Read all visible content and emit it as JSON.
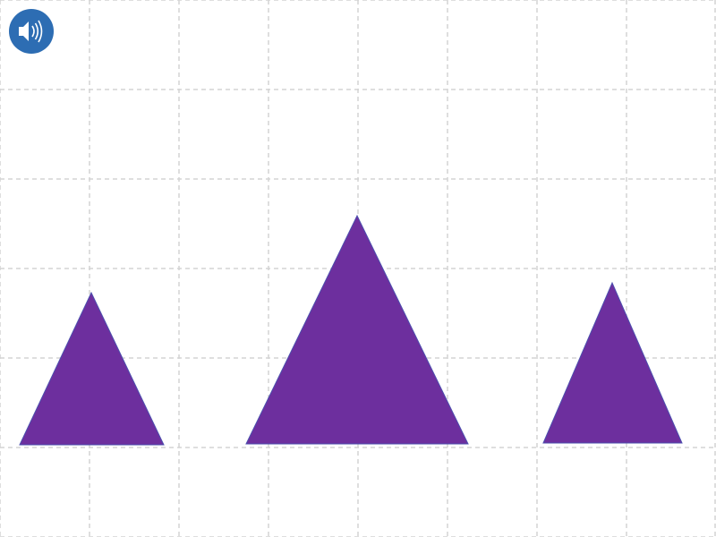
{
  "audio_button": {
    "icon": "speaker-icon",
    "color": "#2d6db3"
  },
  "grid": {
    "visible": true,
    "line_color": "#d4d4d4",
    "style": "dashed"
  },
  "shapes": {
    "fill_color": "#6d2f9e",
    "edge_color": "#4c4fae",
    "items": [
      {
        "name": "triangle-left",
        "kind": "triangle"
      },
      {
        "name": "triangle-middle",
        "kind": "triangle"
      },
      {
        "name": "triangle-right",
        "kind": "triangle"
      }
    ]
  }
}
